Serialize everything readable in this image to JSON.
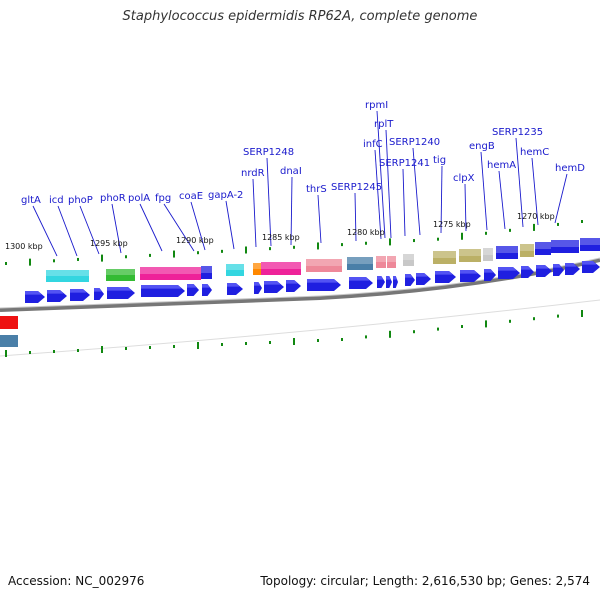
{
  "title": "Staphylococcus epidermidis RP62A, complete genome",
  "footer": {
    "accession": "Accession: NC_002976",
    "summary": "Topology: circular; Length: 2,616,530 bp; Genes: 2,574"
  },
  "colors": {
    "cds_arrow": "#1f1fe0",
    "leader_line": "#1a1acc",
    "tick": "#118811",
    "backbone": "#888888"
  },
  "kbp_labels": [
    "1300 kbp",
    "1295 kbp",
    "1290 kbp",
    "1285 kbp",
    "1280 kbp",
    "1275 kbp",
    "1270 kbp"
  ],
  "gene_labels": [
    "gltA",
    "icd",
    "phoP",
    "phoR",
    "polA",
    "fpg",
    "coaE",
    "gapA-2",
    "nrdR",
    "SERP1248",
    "dnaI",
    "thrS",
    "SERP1245",
    "infC",
    "rpmI",
    "rplT",
    "SERP1241",
    "SERP1240",
    "tig",
    "clpX",
    "engB",
    "hemA",
    "SERP1235",
    "hemC",
    "hemD"
  ]
}
